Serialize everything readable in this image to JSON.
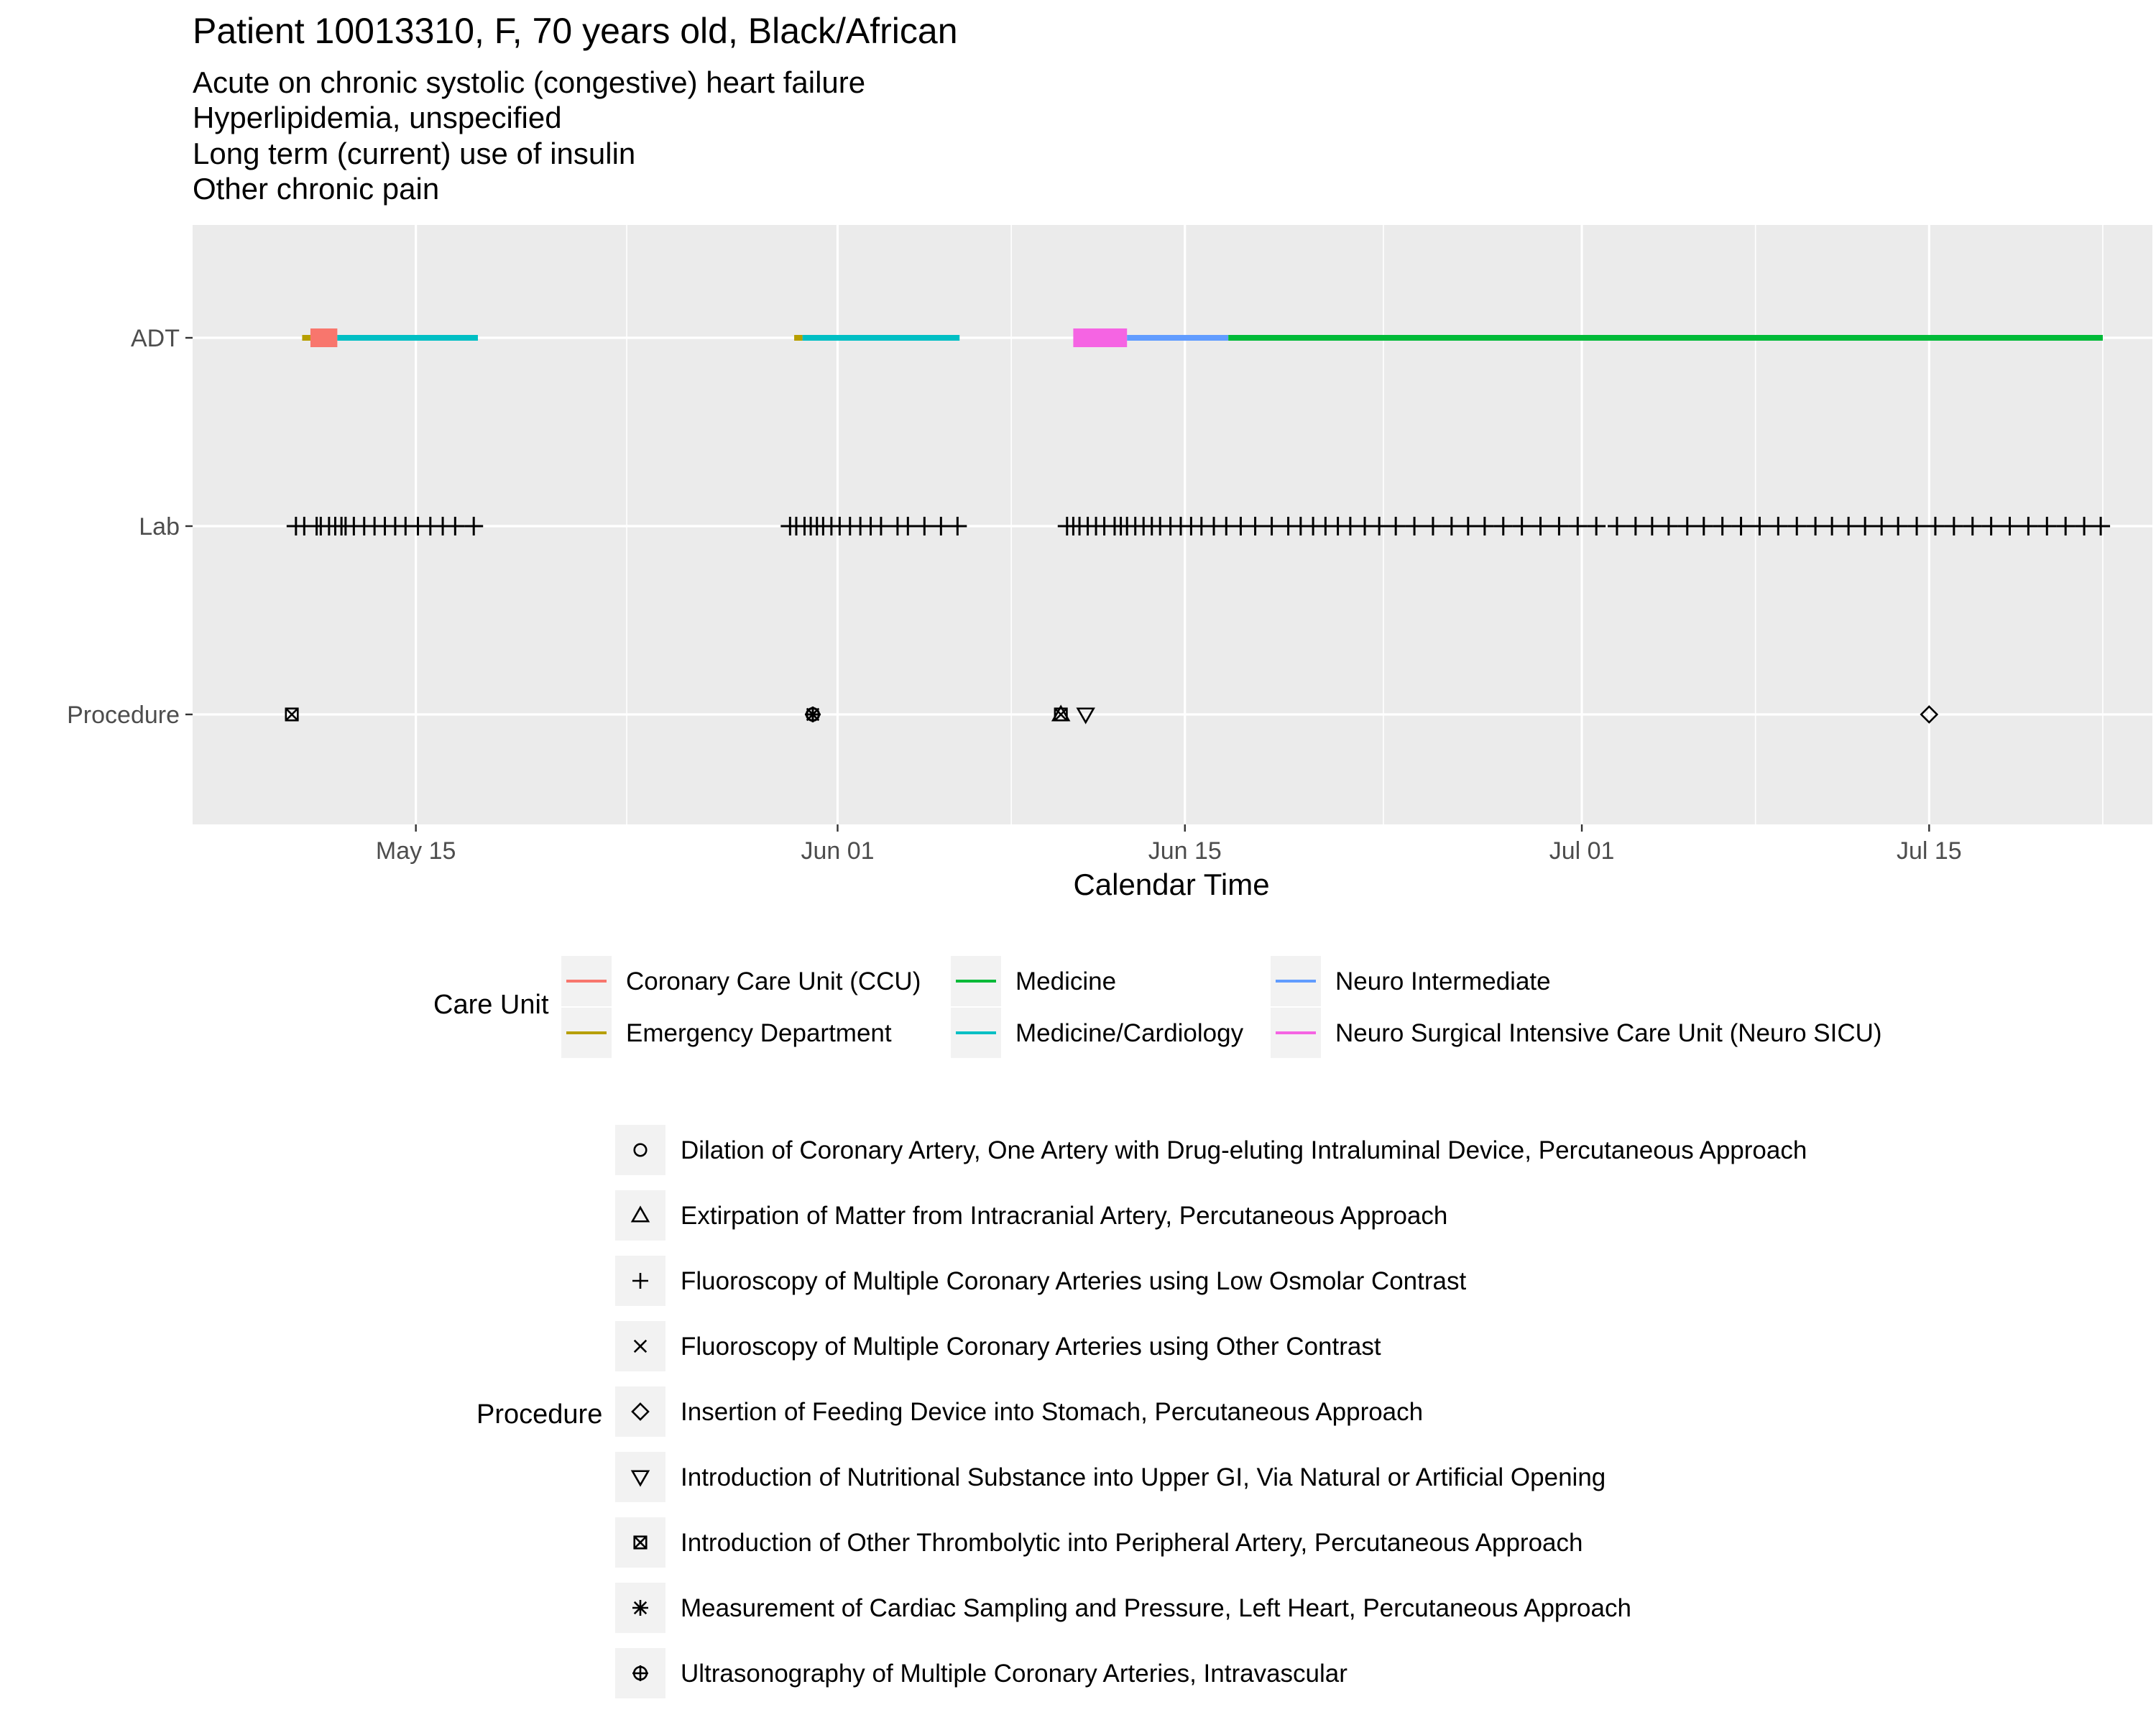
{
  "chart_data": {
    "type": "timeline",
    "title": "Patient  10013310,  F,  70  years old,  Black/African",
    "subtitle": [
      "Acute on chronic systolic (congestive) heart failure",
      "Hyperlipidemia, unspecified",
      "Long term (current) use of insulin",
      "Other chronic pain"
    ],
    "xlabel": "Calendar Time",
    "xlim": [
      "2000-05-06",
      "2000-07-24"
    ],
    "x_ticks": [
      {
        "date": "2000-05-15",
        "label": "May 15"
      },
      {
        "date": "2000-06-01",
        "label": "Jun 01"
      },
      {
        "date": "2000-06-15",
        "label": "Jun 15"
      },
      {
        "date": "2000-07-01",
        "label": "Jul 01"
      },
      {
        "date": "2000-07-15",
        "label": "Jul 15"
      }
    ],
    "y_categories": [
      "ADT",
      "Lab",
      "Procedure"
    ],
    "grid": true,
    "care_unit_legend_title": "Care Unit",
    "care_units": [
      {
        "name": "Coronary Care Unit (CCU)",
        "color": "#F8766D"
      },
      {
        "name": "Emergency Department",
        "color": "#B79F00"
      },
      {
        "name": "Medicine",
        "color": "#00BA38"
      },
      {
        "name": "Medicine/Cardiology",
        "color": "#00BFC4"
      },
      {
        "name": "Neuro Intermediate",
        "color": "#619CFF"
      },
      {
        "name": "Neuro Surgical Intensive Care Unit (Neuro SICU)",
        "color": "#F564E3"
      }
    ],
    "adt_segments": [
      {
        "unit": "Emergency Department",
        "start": "2000-05-10 10:00",
        "end": "2000-05-10 18:00",
        "thick": false
      },
      {
        "unit": "Coronary Care Unit (CCU)",
        "start": "2000-05-10 18:00",
        "end": "2000-05-11 20:00",
        "thick": true
      },
      {
        "unit": "Medicine/Cardiology",
        "start": "2000-05-11 20:00",
        "end": "2000-05-17 12:00",
        "thick": false
      },
      {
        "unit": "Emergency Department",
        "start": "2000-05-30 06:00",
        "end": "2000-05-30 14:00",
        "thick": false
      },
      {
        "unit": "Medicine/Cardiology",
        "start": "2000-05-30 14:00",
        "end": "2000-06-05 22:00",
        "thick": false
      },
      {
        "unit": "Neuro Surgical Intensive Care Unit (Neuro SICU)",
        "start": "2000-06-10 12:00",
        "end": "2000-06-12 16:00",
        "thick": true
      },
      {
        "unit": "Neuro Intermediate",
        "start": "2000-06-12 16:00",
        "end": "2000-06-16 18:00",
        "thick": false
      },
      {
        "unit": "Medicine",
        "start": "2000-06-16 18:00",
        "end": "2000-07-22 00:00",
        "thick": false
      }
    ],
    "lab_events": [
      "2000-05-10 04:00",
      "2000-05-10 12:00",
      "2000-05-11 00:00",
      "2000-05-11 04:00",
      "2000-05-11 12:00",
      "2000-05-11 18:00",
      "2000-05-12 00:00",
      "2000-05-12 04:00",
      "2000-05-12 12:00",
      "2000-05-12 22:00",
      "2000-05-13 08:00",
      "2000-05-13 18:00",
      "2000-05-14 04:00",
      "2000-05-14 14:00",
      "2000-05-15 02:00",
      "2000-05-15 14:00",
      "2000-05-16 02:00",
      "2000-05-16 14:00",
      "2000-05-17 08:00",
      "2000-05-30 02:00",
      "2000-05-30 08:00",
      "2000-05-30 16:00",
      "2000-05-30 22:00",
      "2000-05-31 04:00",
      "2000-05-31 10:00",
      "2000-05-31 18:00",
      "2000-06-01 02:00",
      "2000-06-01 12:00",
      "2000-06-01 22:00",
      "2000-06-02 08:00",
      "2000-06-02 18:00",
      "2000-06-03 10:00",
      "2000-06-03 20:00",
      "2000-06-04 12:00",
      "2000-06-05 04:00",
      "2000-06-05 20:00",
      "2000-06-10 06:00",
      "2000-06-10 12:00",
      "2000-06-10 18:00",
      "2000-06-11 02:00",
      "2000-06-11 10:00",
      "2000-06-11 18:00",
      "2000-06-12 04:00",
      "2000-06-12 10:00",
      "2000-06-12 16:00",
      "2000-06-13 00:00",
      "2000-06-13 08:00",
      "2000-06-13 16:00",
      "2000-06-14 00:00",
      "2000-06-14 10:00",
      "2000-06-14 20:00",
      "2000-06-15 06:00",
      "2000-06-15 16:00",
      "2000-06-16 04:00",
      "2000-06-16 16:00",
      "2000-06-17 06:00",
      "2000-06-17 20:00",
      "2000-06-18 12:00",
      "2000-06-19 04:00",
      "2000-06-19 16:00",
      "2000-06-20 04:00",
      "2000-06-20 16:00",
      "2000-06-21 04:00",
      "2000-06-21 16:00",
      "2000-06-22 06:00",
      "2000-06-22 20:00",
      "2000-06-23 12:00",
      "2000-06-24 06:00",
      "2000-06-25 00:00",
      "2000-06-25 18:00",
      "2000-06-26 10:00",
      "2000-06-27 02:00",
      "2000-06-27 20:00",
      "2000-06-28 14:00",
      "2000-06-29 08:00",
      "2000-06-30 02:00",
      "2000-06-30 20:00",
      "2000-07-01 14:00",
      "2000-07-02 10:00",
      "2000-07-03 04:00",
      "2000-07-03 20:00",
      "2000-07-04 12:00",
      "2000-07-05 06:00",
      "2000-07-05 22:00",
      "2000-07-06 16:00",
      "2000-07-07 10:00",
      "2000-07-08 04:00",
      "2000-07-08 22:00",
      "2000-07-09 16:00",
      "2000-07-10 10:00",
      "2000-07-11 02:00",
      "2000-07-11 18:00",
      "2000-07-12 10:00",
      "2000-07-13 02:00",
      "2000-07-13 18:00",
      "2000-07-14 12:00",
      "2000-07-15 06:00",
      "2000-07-16 00:00",
      "2000-07-16 18:00",
      "2000-07-17 12:00",
      "2000-07-18 06:00",
      "2000-07-19 00:00",
      "2000-07-19 18:00",
      "2000-07-20 12:00",
      "2000-07-21 06:00",
      "2000-07-21 22:00"
    ],
    "procedure_legend_title": "Procedure",
    "procedures": [
      {
        "name": "Dilation of Coronary Artery, One Artery with Drug-eluting Intraluminal Device, Percutaneous Approach",
        "shape": "circle"
      },
      {
        "name": "Extirpation of Matter from Intracranial Artery, Percutaneous Approach",
        "shape": "triangle"
      },
      {
        "name": "Fluoroscopy of Multiple Coronary Arteries using Low Osmolar Contrast",
        "shape": "plus"
      },
      {
        "name": "Fluoroscopy of Multiple Coronary Arteries using Other Contrast",
        "shape": "cross"
      },
      {
        "name": "Insertion of Feeding Device into Stomach, Percutaneous Approach",
        "shape": "diamond"
      },
      {
        "name": "Introduction of Nutritional Substance into Upper GI, Via Natural or Artificial Opening",
        "shape": "triangle-down"
      },
      {
        "name": "Introduction of Other Thrombolytic into Peripheral Artery, Percutaneous Approach",
        "shape": "square-cross"
      },
      {
        "name": "Measurement of Cardiac Sampling and Pressure, Left Heart, Percutaneous Approach",
        "shape": "asterisk"
      },
      {
        "name": "Ultrasonography of Multiple Coronary Arteries, Intravascular",
        "shape": "circle-plus"
      }
    ],
    "procedure_events": [
      {
        "date": "2000-05-10 00:00",
        "shape": "square-cross"
      },
      {
        "date": "2000-05-31 00:00",
        "shape": "circle"
      },
      {
        "date": "2000-05-31 00:00",
        "shape": "plus"
      },
      {
        "date": "2000-05-31 00:00",
        "shape": "cross"
      },
      {
        "date": "2000-05-31 00:00",
        "shape": "asterisk"
      },
      {
        "date": "2000-05-31 00:00",
        "shape": "circle-plus"
      },
      {
        "date": "2000-06-10 00:00",
        "shape": "square-cross"
      },
      {
        "date": "2000-06-10 00:00",
        "shape": "triangle"
      },
      {
        "date": "2000-06-11 00:00",
        "shape": "triangle-down"
      },
      {
        "date": "2000-07-15 00:00",
        "shape": "diamond"
      }
    ]
  }
}
